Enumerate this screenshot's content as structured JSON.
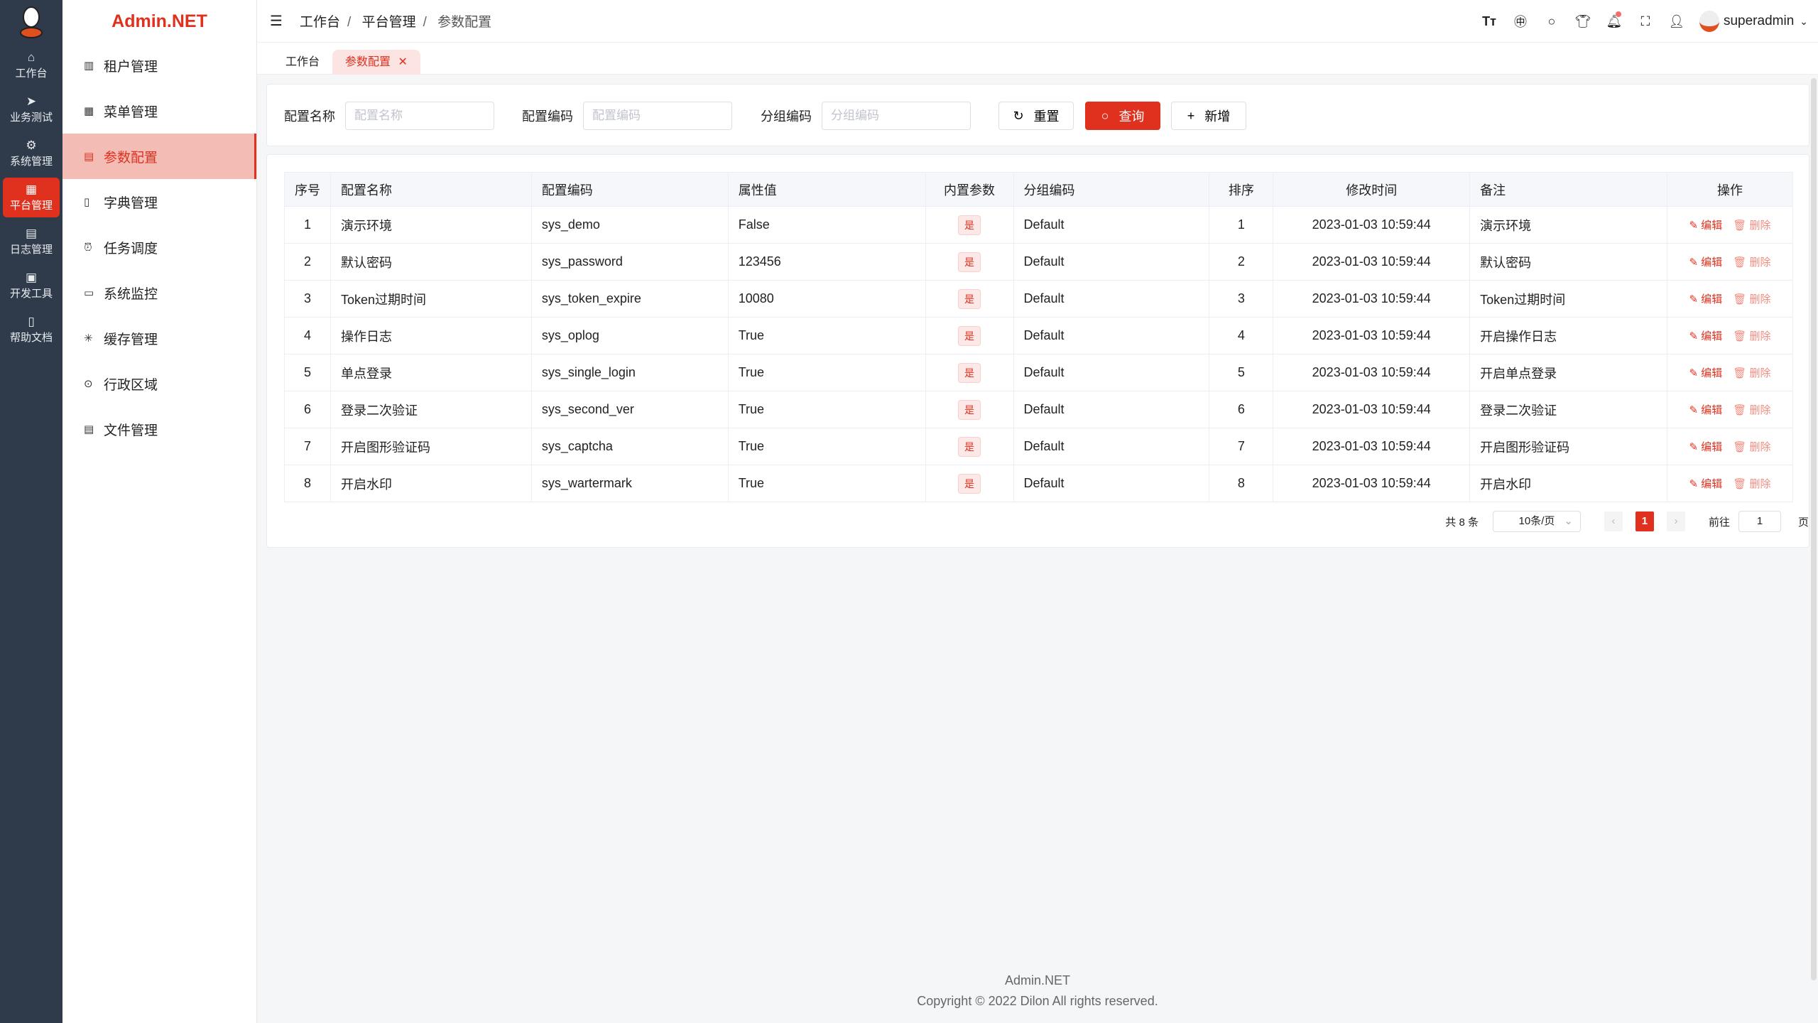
{
  "rail": {
    "items": [
      {
        "label": "工作台",
        "icon": "home-icon"
      },
      {
        "label": "业务测试",
        "icon": "send-icon"
      },
      {
        "label": "系统管理",
        "icon": "gear-icon"
      },
      {
        "label": "平台管理",
        "icon": "grid-icon",
        "active": true
      },
      {
        "label": "日志管理",
        "icon": "document-icon"
      },
      {
        "label": "开发工具",
        "icon": "chip-icon"
      },
      {
        "label": "帮助文档",
        "icon": "book-icon"
      }
    ]
  },
  "sidebar": {
    "brand": "Admin.NET",
    "items": [
      {
        "label": "租户管理",
        "icon": "building-icon"
      },
      {
        "label": "菜单管理",
        "icon": "grid-icon"
      },
      {
        "label": "参数配置",
        "icon": "document-icon",
        "active": true
      },
      {
        "label": "字典管理",
        "icon": "book-icon"
      },
      {
        "label": "任务调度",
        "icon": "alarm-icon"
      },
      {
        "label": "系统监控",
        "icon": "monitor-icon"
      },
      {
        "label": "缓存管理",
        "icon": "loading-icon"
      },
      {
        "label": "行政区域",
        "icon": "location-icon"
      },
      {
        "label": "文件管理",
        "icon": "file-icon"
      }
    ]
  },
  "header": {
    "breadcrumb": [
      "工作台",
      "平台管理",
      "参数配置"
    ],
    "username": "superadmin"
  },
  "tabs": [
    {
      "label": "工作台"
    },
    {
      "label": "参数配置",
      "active": true
    }
  ],
  "search": {
    "fields": [
      {
        "label": "配置名称",
        "placeholder": "配置名称",
        "value": ""
      },
      {
        "label": "配置编码",
        "placeholder": "配置编码",
        "value": ""
      },
      {
        "label": "分组编码",
        "placeholder": "分组编码",
        "value": ""
      }
    ],
    "reset": "重置",
    "query": "查询",
    "add": "新增"
  },
  "table": {
    "columns": [
      "序号",
      "配置名称",
      "配置编码",
      "属性值",
      "内置参数",
      "分组编码",
      "排序",
      "修改时间",
      "备注",
      "操作"
    ],
    "rows": [
      [
        "1",
        "演示环境",
        "sys_demo",
        "False",
        "是",
        "Default",
        "1",
        "2023-01-03 10:59:44",
        "演示环境"
      ],
      [
        "2",
        "默认密码",
        "sys_password",
        "123456",
        "是",
        "Default",
        "2",
        "2023-01-03 10:59:44",
        "默认密码"
      ],
      [
        "3",
        "Token过期时间",
        "sys_token_expire",
        "10080",
        "是",
        "Default",
        "3",
        "2023-01-03 10:59:44",
        "Token过期时间"
      ],
      [
        "4",
        "操作日志",
        "sys_oplog",
        "True",
        "是",
        "Default",
        "4",
        "2023-01-03 10:59:44",
        "开启操作日志"
      ],
      [
        "5",
        "单点登录",
        "sys_single_login",
        "True",
        "是",
        "Default",
        "5",
        "2023-01-03 10:59:44",
        "开启单点登录"
      ],
      [
        "6",
        "登录二次验证",
        "sys_second_ver",
        "True",
        "是",
        "Default",
        "6",
        "2023-01-03 10:59:44",
        "登录二次验证"
      ],
      [
        "7",
        "开启图形验证码",
        "sys_captcha",
        "True",
        "是",
        "Default",
        "7",
        "2023-01-03 10:59:44",
        "开启图形验证码"
      ],
      [
        "8",
        "开启水印",
        "sys_wartermark",
        "True",
        "是",
        "Default",
        "8",
        "2023-01-03 10:59:44",
        "开启水印"
      ]
    ],
    "edit": "编辑",
    "delete": "删除"
  },
  "pagination": {
    "total": "共 8 条",
    "page_size": "10条/页",
    "current": "1",
    "goto_label": "前往",
    "goto_value": "1",
    "page_suffix": "页"
  },
  "footer": {
    "title": "Admin.NET",
    "copyright": "Copyright © 2022 Dilon All rights reserved."
  },
  "colors": {
    "accent": "#e0301e",
    "rail": "#2f3a4a"
  }
}
